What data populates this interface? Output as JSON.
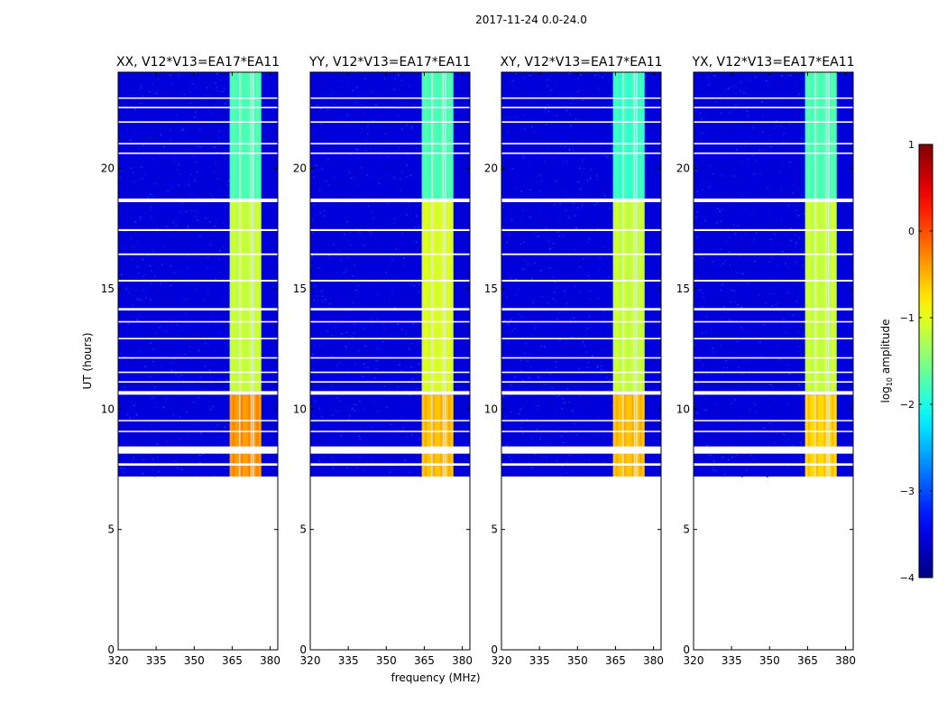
{
  "suptitle": "2017-11-24 0.0-24.0",
  "chart_data": {
    "type": "heatmap",
    "title": "2017-11-24 0.0-24.0",
    "xlabel": "frequency (MHz)",
    "ylabel": "UT (hours)",
    "xlim": [
      320,
      383
    ],
    "ylim": [
      0,
      24
    ],
    "xticks": [
      320,
      335,
      350,
      365,
      380
    ],
    "yticks": [
      0,
      5,
      10,
      15,
      20
    ],
    "colorbar": {
      "label": "log10 amplitude",
      "label_main": "log",
      "label_sub": "10",
      "label_tail": " amplitude",
      "range": [
        -4,
        1
      ],
      "ticks": [
        "−4",
        "−3",
        "−2",
        "−1",
        "0",
        "1"
      ],
      "colormap": "jet"
    },
    "data_start_hour": 7.2,
    "rfi_band_mhz": [
      364,
      376.5
    ],
    "rfi_channel_edges_mhz": [
      368,
      372.5
    ],
    "white_gap_hours": [
      [
        18.6,
        18.75
      ],
      [
        10.6,
        10.75
      ],
      [
        8.15,
        8.45
      ],
      [
        7.65,
        7.75
      ],
      [
        17.4,
        17.48
      ],
      [
        16.4,
        16.47
      ],
      [
        15.3,
        15.37
      ],
      [
        14.1,
        14.2
      ],
      [
        13.6,
        13.66
      ],
      [
        12.9,
        12.96
      ],
      [
        12.1,
        12.16
      ],
      [
        11.5,
        11.56
      ],
      [
        11.1,
        11.16
      ],
      [
        9.5,
        9.55
      ],
      [
        9.05,
        9.1
      ],
      [
        22.5,
        22.56
      ],
      [
        21.9,
        21.96
      ],
      [
        21.0,
        21.06
      ],
      [
        20.6,
        20.66
      ],
      [
        22.9,
        22.95
      ]
    ],
    "panels": [
      {
        "title": "XX, V12*V13=EA17*EA11",
        "segments": [
          {
            "hours": [
              18.75,
              24.0
            ],
            "level": -1.8
          },
          {
            "hours": [
              10.75,
              18.6
            ],
            "level": -1.2
          },
          {
            "hours": [
              7.2,
              10.6
            ],
            "level": -0.4
          }
        ]
      },
      {
        "title": "YY, V12*V13=EA17*EA11",
        "segments": [
          {
            "hours": [
              18.75,
              24.0
            ],
            "level": -1.8
          },
          {
            "hours": [
              10.75,
              18.6
            ],
            "level": -1.1
          },
          {
            "hours": [
              7.2,
              10.6
            ],
            "level": -0.6
          }
        ]
      },
      {
        "title": "XY, V12*V13=EA17*EA11",
        "segments": [
          {
            "hours": [
              18.75,
              24.0
            ],
            "level": -1.9
          },
          {
            "hours": [
              10.75,
              18.6
            ],
            "level": -1.2
          },
          {
            "hours": [
              7.2,
              10.6
            ],
            "level": -0.6
          }
        ]
      },
      {
        "title": "YX, V12*V13=EA17*EA11",
        "segments": [
          {
            "hours": [
              18.75,
              24.0
            ],
            "level": -1.8
          },
          {
            "hours": [
              10.75,
              18.6
            ],
            "level": -1.2
          },
          {
            "hours": [
              7.2,
              10.6
            ],
            "level": -0.7
          }
        ]
      }
    ]
  }
}
